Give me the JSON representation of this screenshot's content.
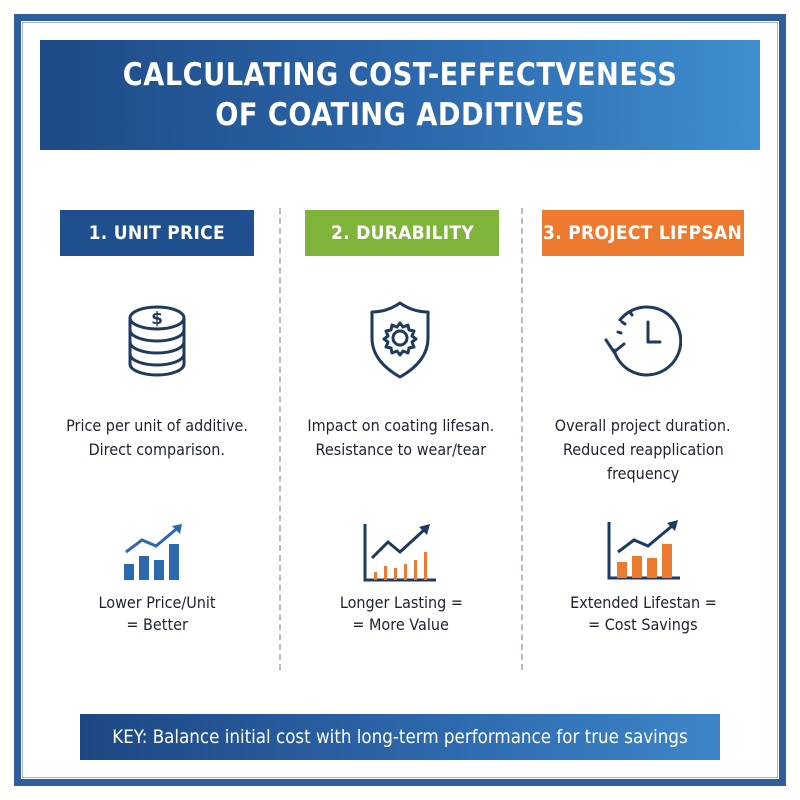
{
  "title": {
    "line1": "CALCULATING COST-EFFECTVENESS",
    "line2": "OF COATING ADDITIVES"
  },
  "columns": [
    {
      "header": "1. UNIT PRICE",
      "header_color": "#1f4f8f",
      "icon": "coin-stack-icon",
      "description": [
        "Price per unit of additive.",
        "Direct comparison."
      ],
      "chart_icon": "rising-bar-chart-icon",
      "result": [
        "Lower Price/Unit",
        "= Better"
      ]
    },
    {
      "header": "2. DURABILITY",
      "header_color": "#7fb33a",
      "icon": "shield-gear-icon",
      "description": [
        "Impact on coating lifesan.",
        "Resistance to wear/tear"
      ],
      "chart_icon": "rising-line-chart-icon",
      "result": [
        "Longer Lasting =",
        "= More Value"
      ]
    },
    {
      "header": "3. PROJECT LIFPSAN",
      "header_color": "#ee7a2f",
      "icon": "clock-refresh-icon",
      "description": [
        "Overall project duration.",
        "Reduced reapplication",
        "frequency"
      ],
      "chart_icon": "rising-bar-chart-icon",
      "result": [
        "Extended Lifestan =",
        "= Cost Savings"
      ]
    }
  ],
  "key": "KEY: Balance initial cost with long-term performance for true savings",
  "colors": {
    "navy": "#1e3a5c",
    "blue": "#2c69ad",
    "light_blue": "#3d8fd6",
    "green": "#7fb33a",
    "orange": "#ee7a2f"
  }
}
